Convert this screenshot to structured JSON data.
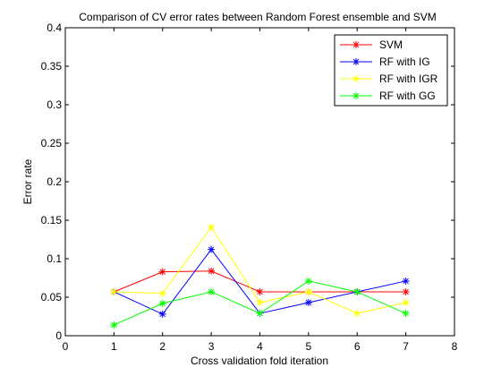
{
  "chart_data": {
    "type": "line",
    "title": "Comparison of CV error rates between Random Forest ensemble and SVM",
    "xlabel": "Cross validation fold iteration",
    "ylabel": "Error rate",
    "xlim": [
      0,
      8
    ],
    "ylim": [
      0,
      0.4
    ],
    "xticks": [
      "0",
      "1",
      "2",
      "3",
      "4",
      "5",
      "6",
      "7",
      "8"
    ],
    "yticks": [
      "0",
      "0.05",
      "0.1",
      "0.15",
      "0.2",
      "0.25",
      "0.3",
      "0.35",
      "0.4"
    ],
    "grid": false,
    "legend_position": "top-right",
    "x": [
      1,
      2,
      3,
      4,
      5,
      6,
      7
    ],
    "series": [
      {
        "name": "SVM",
        "color": "#ff0000",
        "values": [
          0.057,
          0.083,
          0.084,
          0.057,
          0.057,
          0.057,
          0.057
        ]
      },
      {
        "name": "RF with IG",
        "color": "#0000ff",
        "values": [
          0.057,
          0.028,
          0.112,
          0.029,
          0.043,
          0.057,
          0.071
        ]
      },
      {
        "name": "RF with IGR",
        "color": "#ffff00",
        "values": [
          0.057,
          0.055,
          0.141,
          0.043,
          0.057,
          0.029,
          0.043
        ]
      },
      {
        "name": "RF with GG",
        "color": "#00ff00",
        "values": [
          0.014,
          0.042,
          0.057,
          0.029,
          0.071,
          0.057,
          0.029
        ]
      }
    ]
  }
}
